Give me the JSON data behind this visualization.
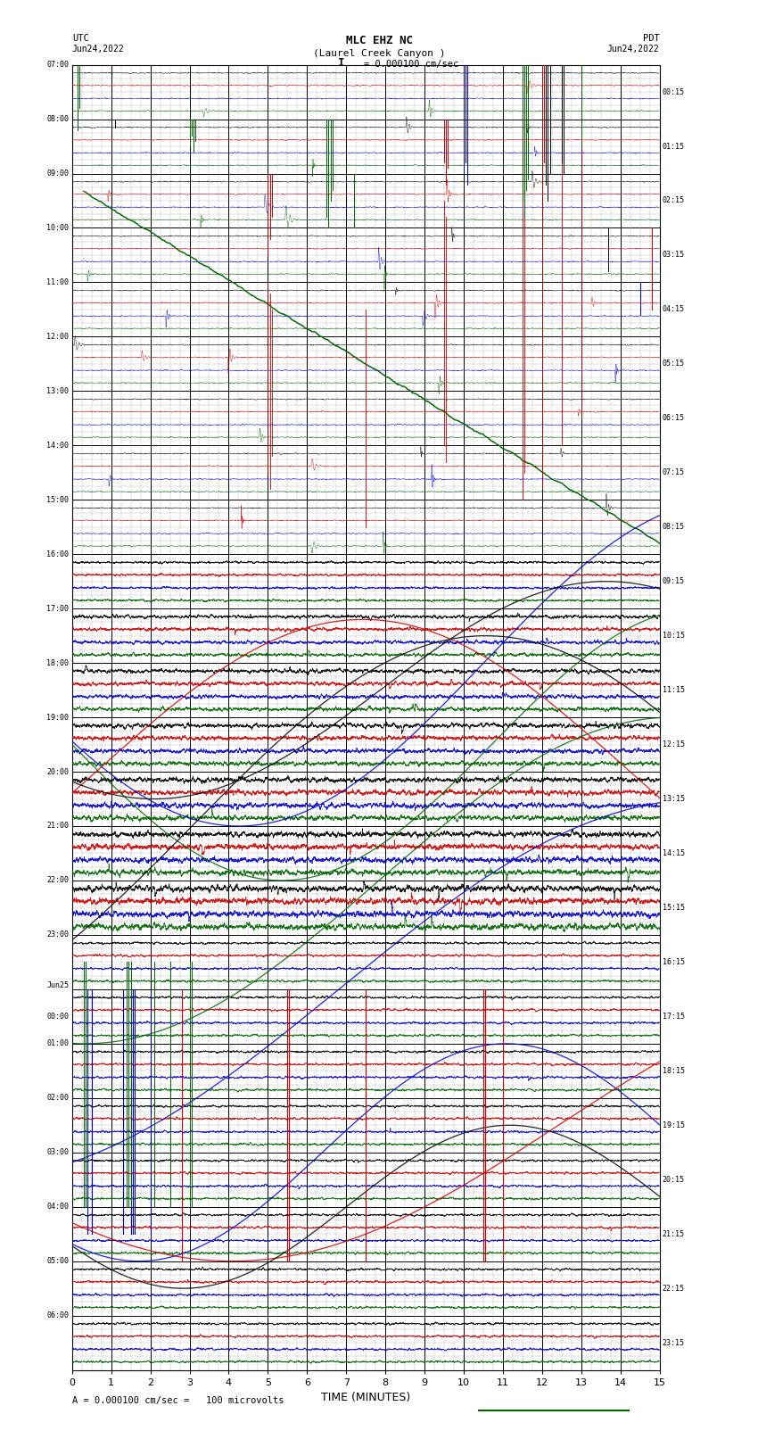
{
  "title_line1": "MLC EHZ NC",
  "title_line2": "(Laurel Creek Canyon )",
  "title_line3": "I = 0.000100 cm/sec",
  "label_left_top": "UTC",
  "label_left_date": "Jun24,2022",
  "label_right_top": "PDT",
  "label_right_date": "Jun24,2022",
  "xlabel": "TIME (MINUTES)",
  "footer": "A = 0.000100 cm/sec =   100 microvolts",
  "xlim": [
    0,
    15
  ],
  "xticks": [
    0,
    1,
    2,
    3,
    4,
    5,
    6,
    7,
    8,
    9,
    10,
    11,
    12,
    13,
    14,
    15
  ],
  "left_times": [
    "07:00",
    "08:00",
    "09:00",
    "10:00",
    "11:00",
    "12:00",
    "13:00",
    "14:00",
    "15:00",
    "16:00",
    "17:00",
    "18:00",
    "19:00",
    "20:00",
    "21:00",
    "22:00",
    "23:00",
    "Jun25\n00:00",
    "01:00",
    "02:00",
    "03:00",
    "04:00",
    "05:00",
    "06:00"
  ],
  "right_times": [
    "00:15",
    "01:15",
    "02:15",
    "03:15",
    "04:15",
    "05:15",
    "06:15",
    "07:15",
    "08:15",
    "09:15",
    "10:15",
    "11:15",
    "12:15",
    "13:15",
    "14:15",
    "15:15",
    "16:15",
    "17:15",
    "18:15",
    "19:15",
    "20:15",
    "21:15",
    "22:15",
    "23:15"
  ],
  "bg_color": "#ffffff",
  "grid_major_color": "#000000",
  "grid_minor_color": "#aaaaaa",
  "trace_colors": [
    "#000000",
    "#006400",
    "#cc0000",
    "#0000cc"
  ],
  "fig_width": 8.5,
  "fig_height": 16.13,
  "dpi": 100
}
